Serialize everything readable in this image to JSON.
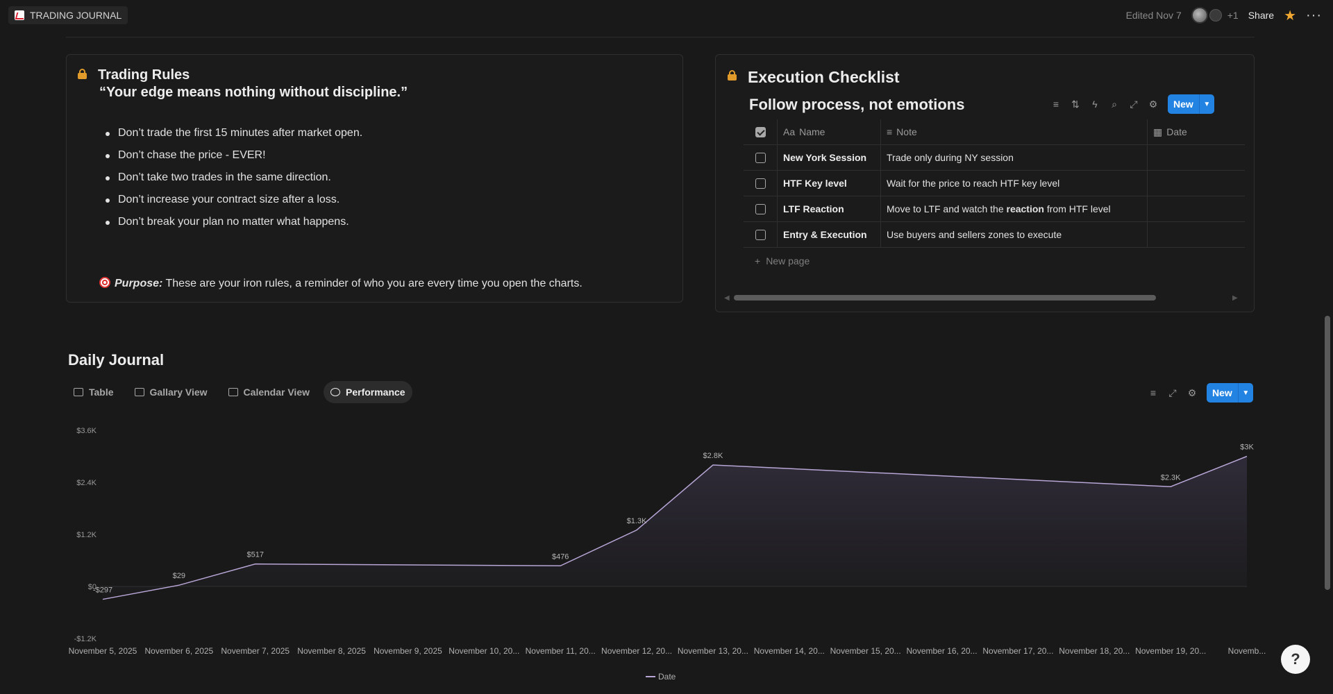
{
  "topbar": {
    "breadcrumb": "TRADING JOURNAL",
    "edited": "Edited Nov 7",
    "collaborators_extra": "+1",
    "share": "Share",
    "more": "···"
  },
  "rules": {
    "title": "Trading Rules",
    "quote": "“Your edge means nothing without discipline.”",
    "items": [
      "Don’t trade the first 15 minutes after market open.",
      "Don’t chase the price - EVER!",
      "Don’t take two trades in the same direction.",
      "Don’t increase your contract size after a loss.",
      "Don’t break your plan no matter what happens."
    ],
    "purpose_label": "Purpose:",
    "purpose_text": " These are your iron rules, a reminder of who you are every time you open the charts."
  },
  "checklist": {
    "title": "Execution Checklist",
    "subtitle": "Follow process, not emotions",
    "new_label": "New",
    "columns": {
      "name": "Name",
      "note": "Note",
      "date": "Date"
    },
    "rows": [
      {
        "name": "New York Session",
        "note": "Trade only during NY session",
        "date": ""
      },
      {
        "name": "HTF Key level",
        "note": "Wait for the price to reach HTF key level",
        "date": ""
      },
      {
        "name": "LTF Reaction",
        "note_pre": "Move to LTF and watch the ",
        "note_bold": "reaction",
        "note_post": " from HTF level",
        "date": ""
      },
      {
        "name": "Entry & Execution",
        "note": "Use buyers and sellers zones to execute",
        "date": ""
      }
    ],
    "new_page": "New page"
  },
  "journal": {
    "title": "Daily Journal",
    "tabs": [
      "Table",
      "Gallary View",
      "Calendar View",
      "Performance"
    ],
    "active_tab": 3,
    "new_label": "New"
  },
  "chart_data": {
    "type": "area",
    "x": [
      "November 5, 2025",
      "November 6, 2025",
      "November 7, 2025",
      "November 8, 2025",
      "November 9, 2025",
      "November 10, 20...",
      "November 11, 20...",
      "November 12, 20...",
      "November 13, 20...",
      "November 14, 20...",
      "November 15, 20...",
      "November 16, 20...",
      "November 17, 20...",
      "November 18, 20...",
      "November 19, 20...",
      "Novemb..."
    ],
    "points": [
      {
        "x_index": 0,
        "value": -297,
        "label": "-$297"
      },
      {
        "x_index": 1,
        "value": 29,
        "label": "$29"
      },
      {
        "x_index": 2,
        "value": 517,
        "label": "$517"
      },
      {
        "x_index": 6,
        "value": 476,
        "label": "$476"
      },
      {
        "x_index": 7,
        "value": 1300,
        "label": "$1.3K"
      },
      {
        "x_index": 8,
        "value": 2800,
        "label": "$2.8K"
      },
      {
        "x_index": 14,
        "value": 2300,
        "label": "$2.3K"
      },
      {
        "x_index": 15,
        "value": 3000,
        "label": "$3K"
      }
    ],
    "yticks": [
      {
        "value": 3600,
        "label": "$3.6K"
      },
      {
        "value": 2400,
        "label": "$2.4K"
      },
      {
        "value": 1200,
        "label": "$1.2K"
      },
      {
        "value": 0,
        "label": "$0"
      },
      {
        "value": -1200,
        "label": "-$1.2K"
      }
    ],
    "ylim": [
      -1200,
      3600
    ],
    "legend": "Date",
    "color": "#b7a6d6"
  }
}
